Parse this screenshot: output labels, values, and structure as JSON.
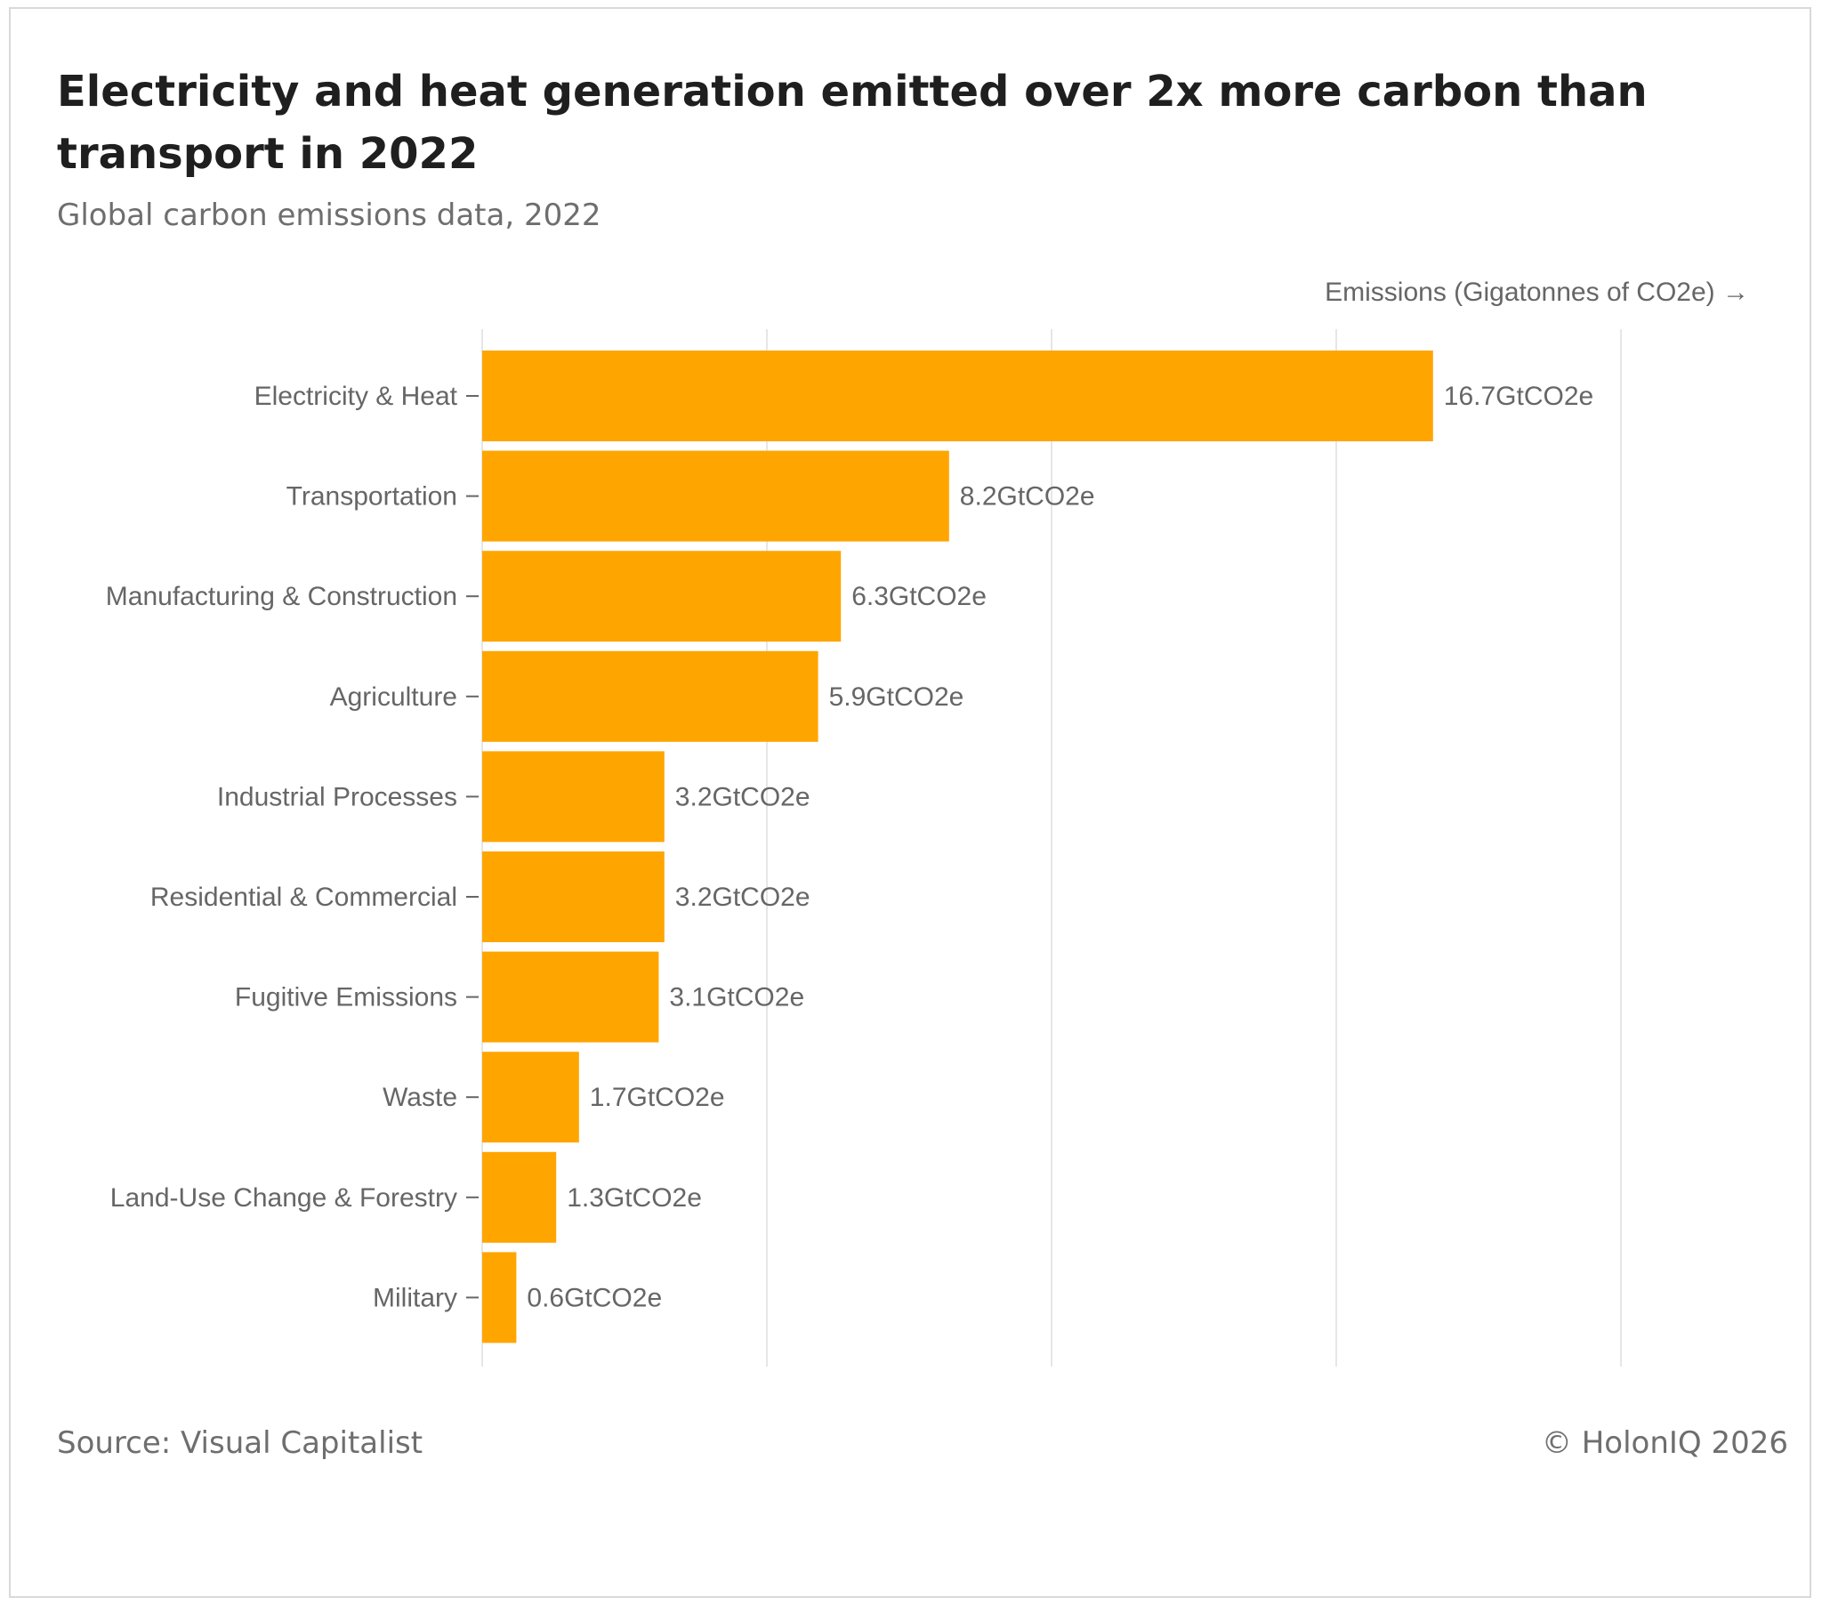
{
  "header": {
    "title": "Electricity and heat generation emitted over 2x more carbon than transport in 2022",
    "subtitle": "Global carbon emissions data, 2022"
  },
  "footer": {
    "source": "Source: Visual Capitalist",
    "copyright": "© HolonIQ 2026"
  },
  "colors": {
    "bar": "#FFA500",
    "grid": "#e6e6e6",
    "label_text": "#666666"
  },
  "chart_data": {
    "type": "bar",
    "orientation": "horizontal",
    "title": "Electricity and heat generation emitted over 2x more carbon than transport in 2022",
    "subtitle": "Global carbon emissions data, 2022",
    "xlabel": "Emissions (Gigatonnes of CO2e) →",
    "ylabel": "",
    "xlim": [
      0,
      20
    ],
    "grid": "vertical",
    "value_suffix": "GtCO2e",
    "categories": [
      "Electricity & Heat",
      "Transportation",
      "Manufacturing & Construction",
      "Agriculture",
      "Industrial Processes",
      "Residential & Commercial",
      "Fugitive Emissions",
      "Waste",
      "Land-Use Change & Forestry",
      "Military"
    ],
    "values": [
      16.7,
      8.2,
      6.3,
      5.9,
      3.2,
      3.2,
      3.1,
      1.7,
      1.3,
      0.6
    ],
    "data_labels": [
      "16.7GtCO2e",
      "8.2GtCO2e",
      "6.3GtCO2e",
      "5.9GtCO2e",
      "3.2GtCO2e",
      "3.2GtCO2e",
      "3.1GtCO2e",
      "1.7GtCO2e",
      "1.3GtCO2e",
      "0.6GtCO2e"
    ]
  }
}
